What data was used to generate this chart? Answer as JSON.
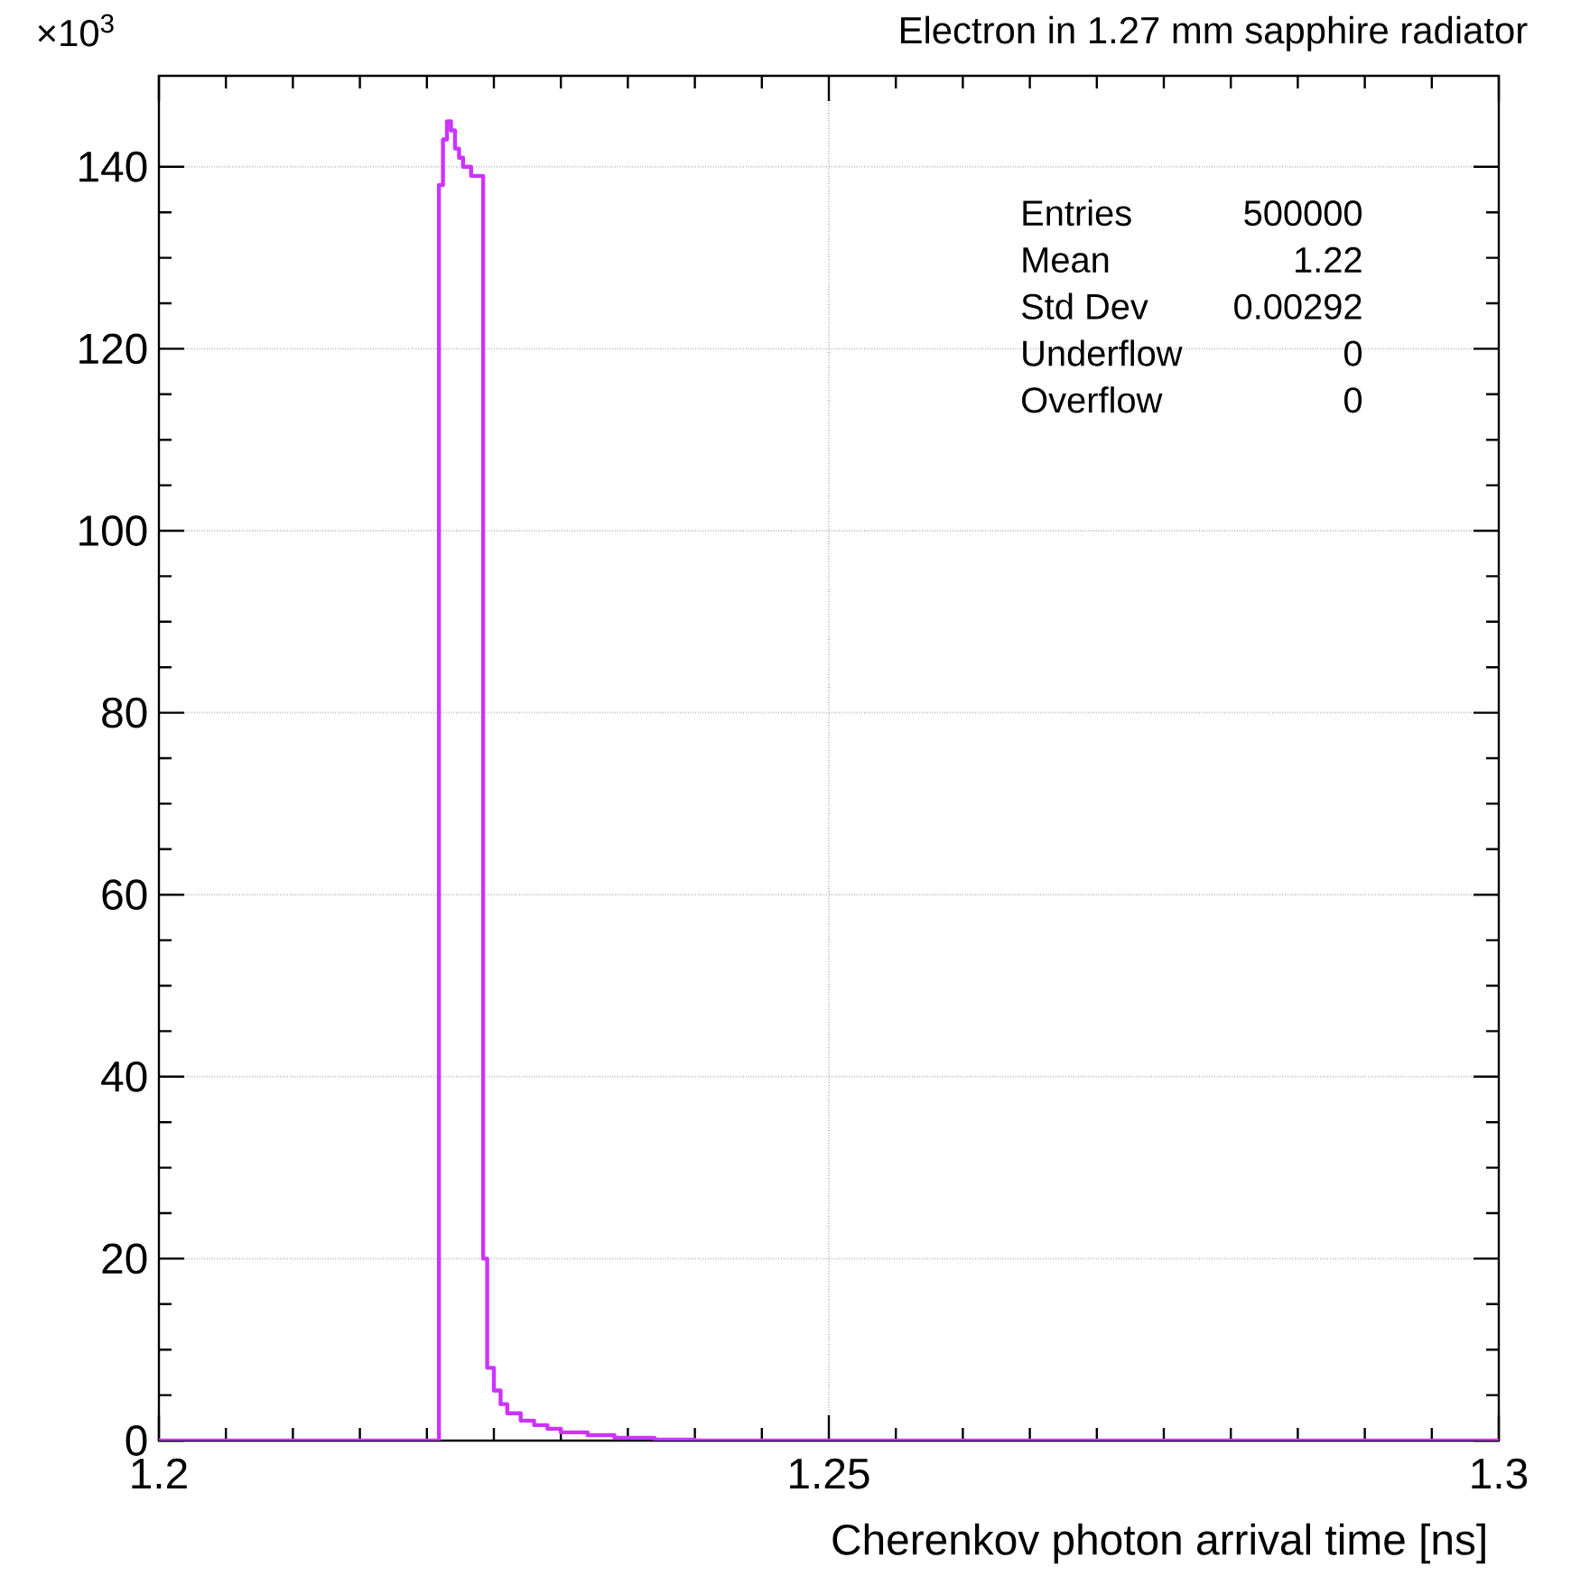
{
  "chart_data": {
    "type": "histogram",
    "title": "Electron in 1.27 mm sapphire radiator",
    "xlabel": "Cherenkov photon arrival time [ns]",
    "annotations": [
      "×10$^{3}$",
      "Entries",
      "500000",
      "Mean",
      "1.22",
      "Std Dev",
      "0.00292",
      "Underflow",
      "0",
      "Overflow",
      "0"
    ],
    "bins": [
      1.2,
      1.2209,
      1.2212,
      1.2215,
      1.2218,
      1.2221,
      1.2224,
      1.2227,
      1.223,
      1.2233,
      1.2236,
      1.2239,
      1.2242,
      1.2245,
      1.225,
      1.2255,
      1.226,
      1.227,
      1.228,
      1.229,
      1.23,
      1.232,
      1.234,
      1.237,
      1.24,
      1.3
    ],
    "values": [
      0,
      138,
      143,
      145,
      144,
      142,
      141,
      140,
      140,
      139,
      139,
      139,
      20,
      8,
      5.5,
      4,
      3,
      2.2,
      1.7,
      1.3,
      0.9,
      0.6,
      0.3,
      0.1,
      0
    ],
    "color": "#cc33ff",
    "xlim": [
      1.2,
      1.3
    ],
    "ylim": [
      0,
      150
    ],
    "xticks": [
      1.2,
      1.25,
      1.3
    ],
    "yticks": [
      0,
      20,
      40,
      60,
      80,
      100,
      120,
      140
    ],
    "grid": true
  }
}
